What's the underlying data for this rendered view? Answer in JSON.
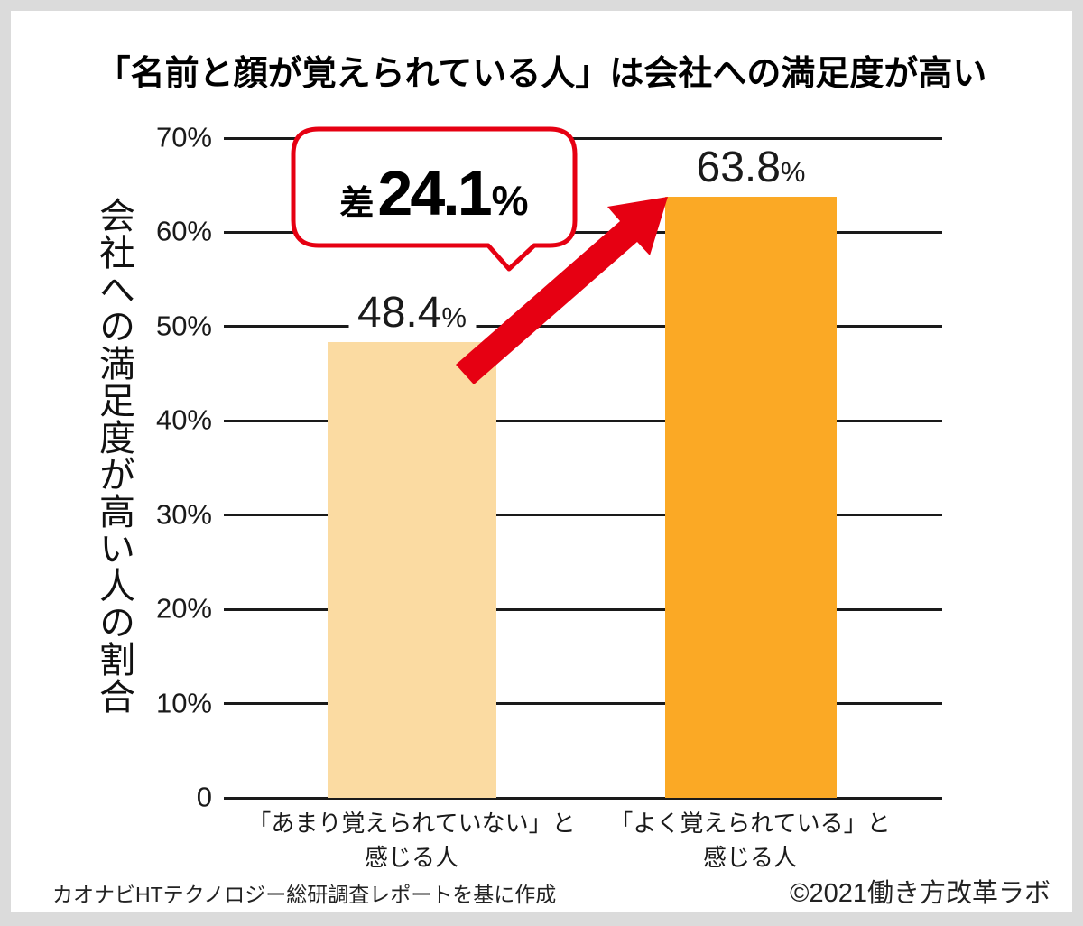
{
  "title": "「名前と顔が覚えられている人」は会社への満足度が高い",
  "chart_data": {
    "type": "bar",
    "title": "「名前と顔が覚えられている人」は会社への満足度が高い",
    "ylabel": "会社への満足度が高い人の割合",
    "xlabel": "",
    "categories": [
      "「あまり覚えられていない」と感じる人",
      "「よく覚えられている」と感じる人"
    ],
    "values": [
      48.4,
      63.8
    ],
    "ylim": [
      0,
      70
    ],
    "yticks": [
      "0",
      "10%",
      "20%",
      "30%",
      "40%",
      "50%",
      "60%",
      "70%"
    ],
    "grid": true,
    "legend": false,
    "bar_colors": [
      "#FBDBA2",
      "#FBA925"
    ],
    "annotation": {
      "label": "差",
      "value": "24.1",
      "unit": "%",
      "meaning": "difference between the two bars"
    }
  },
  "bars": [
    {
      "display": "48.4",
      "unit": "%"
    },
    {
      "display": "63.8",
      "unit": "%"
    }
  ],
  "x_labels": [
    {
      "line1": "「あまり覚えられていない」と",
      "line2": "感じる人"
    },
    {
      "line1": "「よく覚えられている」と",
      "line2": "感じる人"
    }
  ],
  "footer": {
    "source": "カオナビHTテクノロジー総研調査レポートを基に作成",
    "copyright": "©2021働き方改革ラボ"
  },
  "colors": {
    "accent_red": "#E60012",
    "bar_light": "#FBDBA2",
    "bar_dark": "#FBA925",
    "grid": "#1A1A1A",
    "frame": "#DBDBDB",
    "card": "#FFFFFF"
  }
}
